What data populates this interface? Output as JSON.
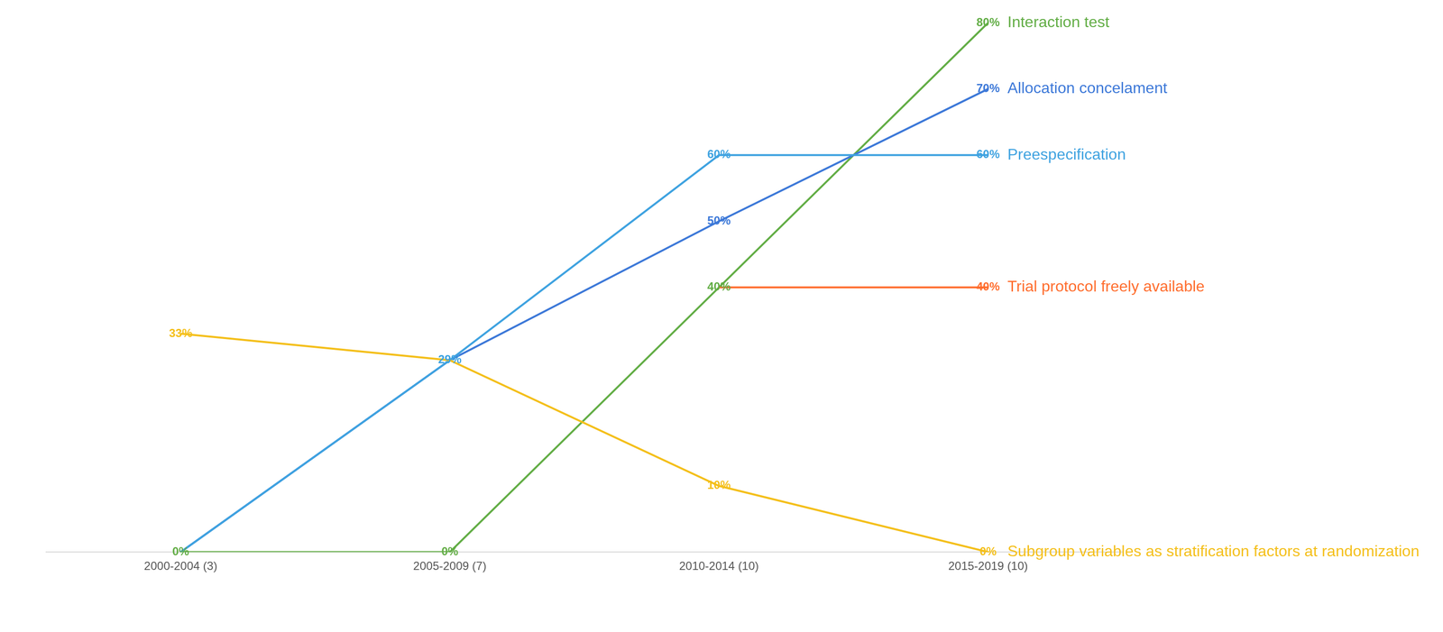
{
  "chart_data": {
    "type": "line",
    "categories": [
      "2000-2004 (3)",
      "2005-2009 (7)",
      "2010-2014 (10)",
      "2015-2019 (10)"
    ],
    "series": [
      {
        "name": "Subgroup variables as stratification factors at randomization",
        "color": "#f4bf1a",
        "values": [
          33,
          29,
          10,
          0
        ],
        "value_labels": [
          "33%",
          null,
          "10%",
          "0%"
        ]
      },
      {
        "name": "Trial protocol freely available",
        "color": "#ff6d2d",
        "values": [
          null,
          null,
          40,
          40
        ],
        "value_labels": [
          null,
          null,
          null,
          "40%"
        ]
      },
      {
        "name": "Preespecification",
        "color": "#3ea2e0",
        "values": [
          0,
          29,
          60,
          60
        ],
        "value_labels": [
          null,
          "29%",
          "60%",
          "60%"
        ]
      },
      {
        "name": "Allocation concelament",
        "color": "#3c78d8",
        "values": [
          0,
          29,
          50,
          70
        ],
        "value_labels": [
          null,
          null,
          "50%",
          "70%"
        ]
      },
      {
        "name": "Interaction test",
        "color": "#62ad45",
        "values": [
          0,
          0,
          40,
          80
        ],
        "value_labels": [
          "0%",
          "0%",
          "40%",
          "80%"
        ]
      }
    ],
    "ylim": [
      0,
      80
    ],
    "grid": false,
    "tick_labels": "x",
    "data_labels": true
  }
}
